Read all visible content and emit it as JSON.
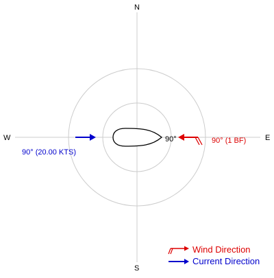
{
  "compass": {
    "north": "N",
    "south": "S",
    "east": "E",
    "west": "W"
  },
  "heading_label": "90°",
  "wind": {
    "label": "90° (1 BF)",
    "color": "#dd0000"
  },
  "current": {
    "label": "90° (20.00 KTS)",
    "color": "#0000cc"
  },
  "legend": {
    "wind": "Wind Direction",
    "current": "Current Direction"
  }
}
